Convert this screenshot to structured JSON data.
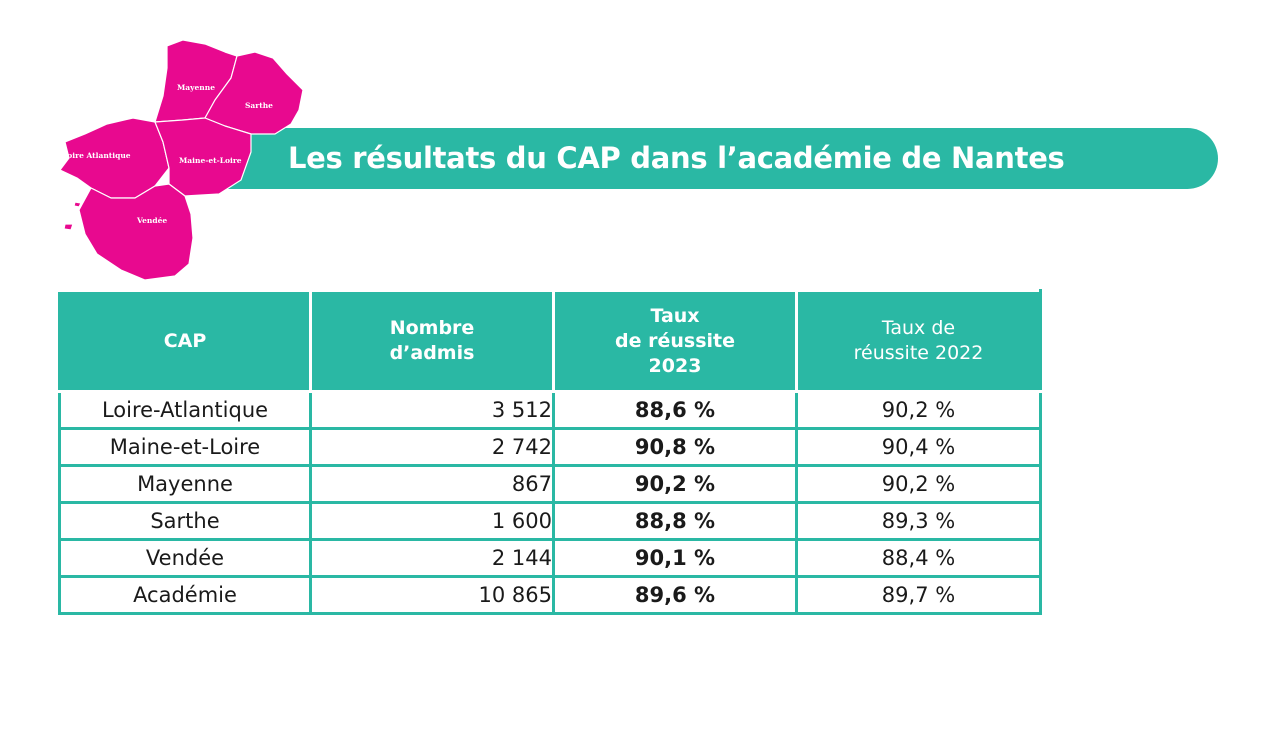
{
  "banner": {
    "title": "Les résultats du CAP dans l’académie de Nantes"
  },
  "map": {
    "regions": [
      "Mayenne",
      "Sarthe",
      "Loire Atlantique",
      "Maine-et-Loire",
      "Vendée"
    ],
    "fill_color": "#e8098f"
  },
  "table": {
    "headers": [
      {
        "lines": [
          "CAP"
        ]
      },
      {
        "lines": [
          "Nombre",
          "d’admis"
        ]
      },
      {
        "lines": [
          "Taux",
          "de réussite",
          "2023"
        ]
      },
      {
        "lines": [
          "Taux de",
          "réussite 2022"
        ]
      }
    ],
    "rows": [
      {
        "name": "Loire-Atlantique",
        "admis": "3 512",
        "taux_2023": "88,6 %",
        "taux_2022": "90,2 %"
      },
      {
        "name": "Maine-et-Loire",
        "admis": "2 742",
        "taux_2023": "90,8 %",
        "taux_2022": "90,4 %"
      },
      {
        "name": "Mayenne",
        "admis": "867",
        "taux_2023": "90,2 %",
        "taux_2022": "90,2 %"
      },
      {
        "name": "Sarthe",
        "admis": "1 600",
        "taux_2023": "88,8 %",
        "taux_2022": "89,3 %"
      },
      {
        "name": "Vendée",
        "admis": "2 144",
        "taux_2023": "90,1 %",
        "taux_2022": "88,4 %"
      },
      {
        "name": "Académie",
        "admis": "10 865",
        "taux_2023": "89,6 %",
        "taux_2022": "89,7 %"
      }
    ]
  },
  "colors": {
    "teal": "#2ab8a4",
    "magenta": "#e8098f"
  }
}
